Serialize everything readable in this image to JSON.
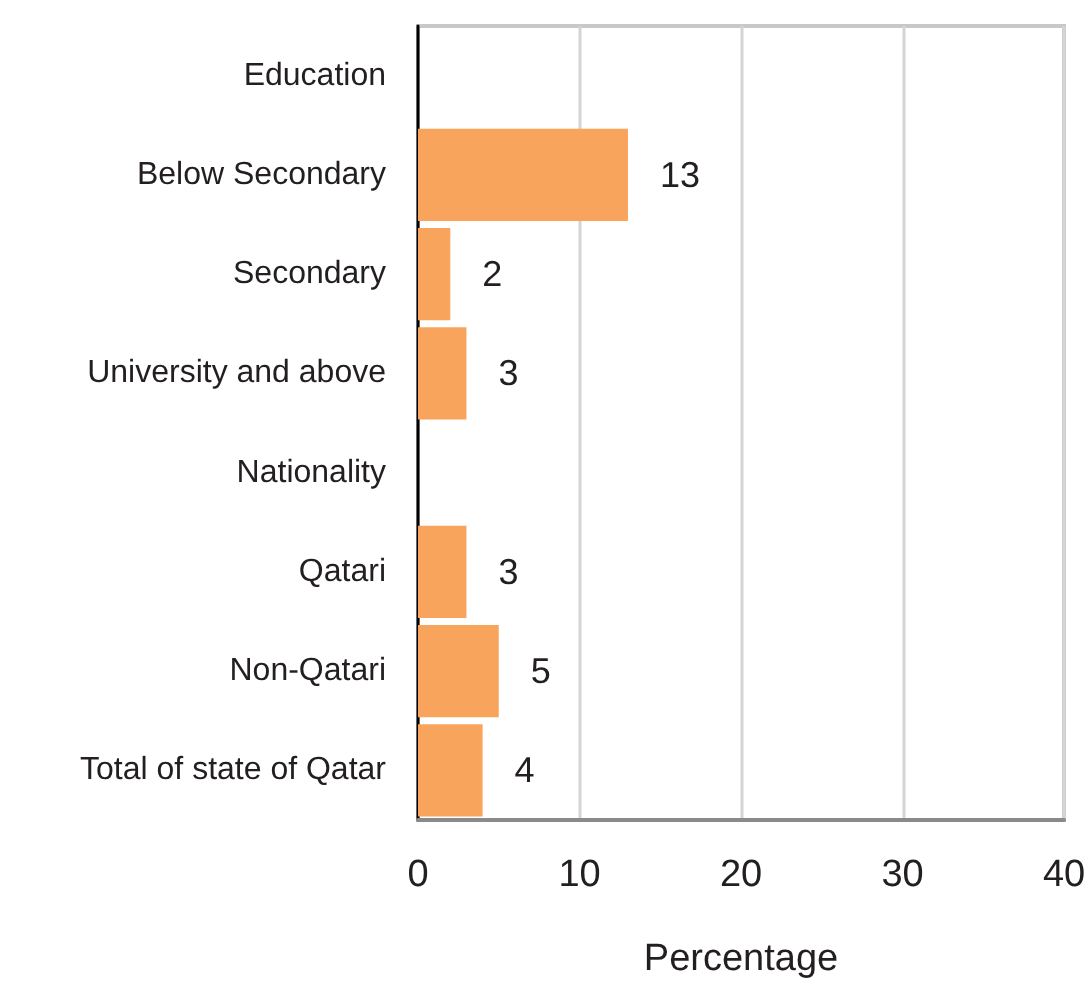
{
  "chart_data": {
    "type": "bar",
    "orientation": "horizontal",
    "categories": [
      "Education",
      "Below Secondary",
      "Secondary",
      "University and above",
      "Nationality",
      "Qatari",
      "Non-Qatari",
      "Total of state of Qatar"
    ],
    "values": [
      null,
      13,
      2,
      3,
      null,
      3,
      5,
      4
    ],
    "color": "#f8a45c",
    "xlabel": "Percentage",
    "xlim": [
      0,
      40
    ],
    "xticks": [
      0,
      10,
      20,
      30,
      40
    ],
    "grid": "x",
    "data_labels": true
  }
}
